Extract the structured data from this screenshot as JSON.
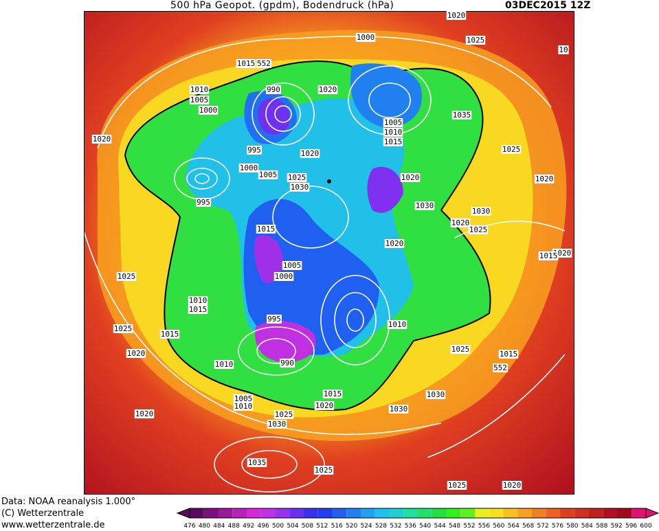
{
  "title": "500 hPa Geopot. (gpdm), Bodendruck (hPa)",
  "datetime": "03DEC2015 12Z",
  "footer": {
    "data_source": "Data: NOAA reanalysis 1.000°",
    "copyright": "(C) Wetterzentrale",
    "website": "www.wetterzentrale.de"
  },
  "colorbar": {
    "ticks": [
      "476",
      "480",
      "484",
      "488",
      "492",
      "496",
      "500",
      "504",
      "508",
      "512",
      "516",
      "520",
      "524",
      "528",
      "532",
      "536",
      "540",
      "544",
      "548",
      "552",
      "556",
      "560",
      "564",
      "568",
      "572",
      "576",
      "580",
      "584",
      "588",
      "592",
      "596",
      "600"
    ],
    "colors": [
      "#5a0a5a",
      "#7a107a",
      "#9a189a",
      "#ba20ba",
      "#d628d6",
      "#c030e8",
      "#9a30f0",
      "#6a30f0",
      "#3a30f0",
      "#2040f0",
      "#2060f0",
      "#2080f0",
      "#20a0f0",
      "#20c0f0",
      "#20d0d0",
      "#20e0a0",
      "#20e070",
      "#20e040",
      "#30f020",
      "#60f020",
      "#e8f020",
      "#f8e020",
      "#f8c020",
      "#f8a020",
      "#f08020",
      "#f06020",
      "#e04020",
      "#d03020",
      "#c02020",
      "#b01020",
      "#a00820",
      "#e01070"
    ]
  },
  "isobar_labels": [
    {
      "text": "1020",
      "pos": "top"
    },
    {
      "text": "1000",
      "pos": "top"
    },
    {
      "text": "1025",
      "pos": "top"
    },
    {
      "text": "1015",
      "pos": "top"
    },
    {
      "text": "552",
      "pos": "top"
    },
    {
      "text": "1010",
      "pos": "left"
    },
    {
      "text": "1005",
      "pos": "left"
    },
    {
      "text": "1000",
      "pos": "left"
    },
    {
      "text": "990",
      "pos": "top"
    },
    {
      "text": "1020",
      "pos": "top"
    },
    {
      "text": "1005",
      "pos": "top"
    },
    {
      "text": "1010",
      "pos": "top"
    },
    {
      "text": "1015",
      "pos": "top"
    },
    {
      "text": "1035",
      "pos": "right"
    },
    {
      "text": "1020",
      "pos": "left"
    },
    {
      "text": "995",
      "pos": "center"
    },
    {
      "text": "1020",
      "pos": "center"
    },
    {
      "text": "1025",
      "pos": "right"
    },
    {
      "text": "1000",
      "pos": "center"
    },
    {
      "text": "1005",
      "pos": "center"
    },
    {
      "text": "1025",
      "pos": "center"
    },
    {
      "text": "1030",
      "pos": "center"
    },
    {
      "text": "1020",
      "pos": "center"
    },
    {
      "text": "1020",
      "pos": "right"
    },
    {
      "text": "995",
      "pos": "left"
    },
    {
      "text": "1030",
      "pos": "center"
    },
    {
      "text": "1030",
      "pos": "right"
    },
    {
      "text": "1020",
      "pos": "left"
    },
    {
      "text": "1025",
      "pos": "right"
    },
    {
      "text": "1015",
      "pos": "center"
    },
    {
      "text": "1020",
      "pos": "center"
    },
    {
      "text": "1020",
      "pos": "right"
    },
    {
      "text": "1015",
      "pos": "right"
    },
    {
      "text": "1005",
      "pos": "center"
    },
    {
      "text": "1000",
      "pos": "center"
    },
    {
      "text": "1025",
      "pos": "left"
    },
    {
      "text": "1010",
      "pos": "left"
    },
    {
      "text": "1015",
      "pos": "left"
    },
    {
      "text": "995",
      "pos": "center"
    },
    {
      "text": "1010",
      "pos": "center"
    },
    {
      "text": "1025",
      "pos": "left"
    },
    {
      "text": "1015",
      "pos": "left"
    },
    {
      "text": "1020",
      "pos": "left"
    },
    {
      "text": "990",
      "pos": "center"
    },
    {
      "text": "1010",
      "pos": "center"
    },
    {
      "text": "1025",
      "pos": "right"
    },
    {
      "text": "1015",
      "pos": "right"
    },
    {
      "text": "552",
      "pos": "right"
    },
    {
      "text": "1005",
      "pos": "center"
    },
    {
      "text": "1010",
      "pos": "center"
    },
    {
      "text": "1015",
      "pos": "center"
    },
    {
      "text": "1020",
      "pos": "center"
    },
    {
      "text": "1030",
      "pos": "center"
    },
    {
      "text": "1030",
      "pos": "center"
    },
    {
      "text": "1020",
      "pos": "left"
    },
    {
      "text": "1025",
      "pos": "center"
    },
    {
      "text": "1030",
      "pos": "center"
    },
    {
      "text": "1035",
      "pos": "center"
    },
    {
      "text": "1025",
      "pos": "center"
    },
    {
      "text": "1025",
      "pos": "right"
    },
    {
      "text": "1020",
      "pos": "right"
    },
    {
      "text": "10",
      "pos": "right"
    }
  ]
}
